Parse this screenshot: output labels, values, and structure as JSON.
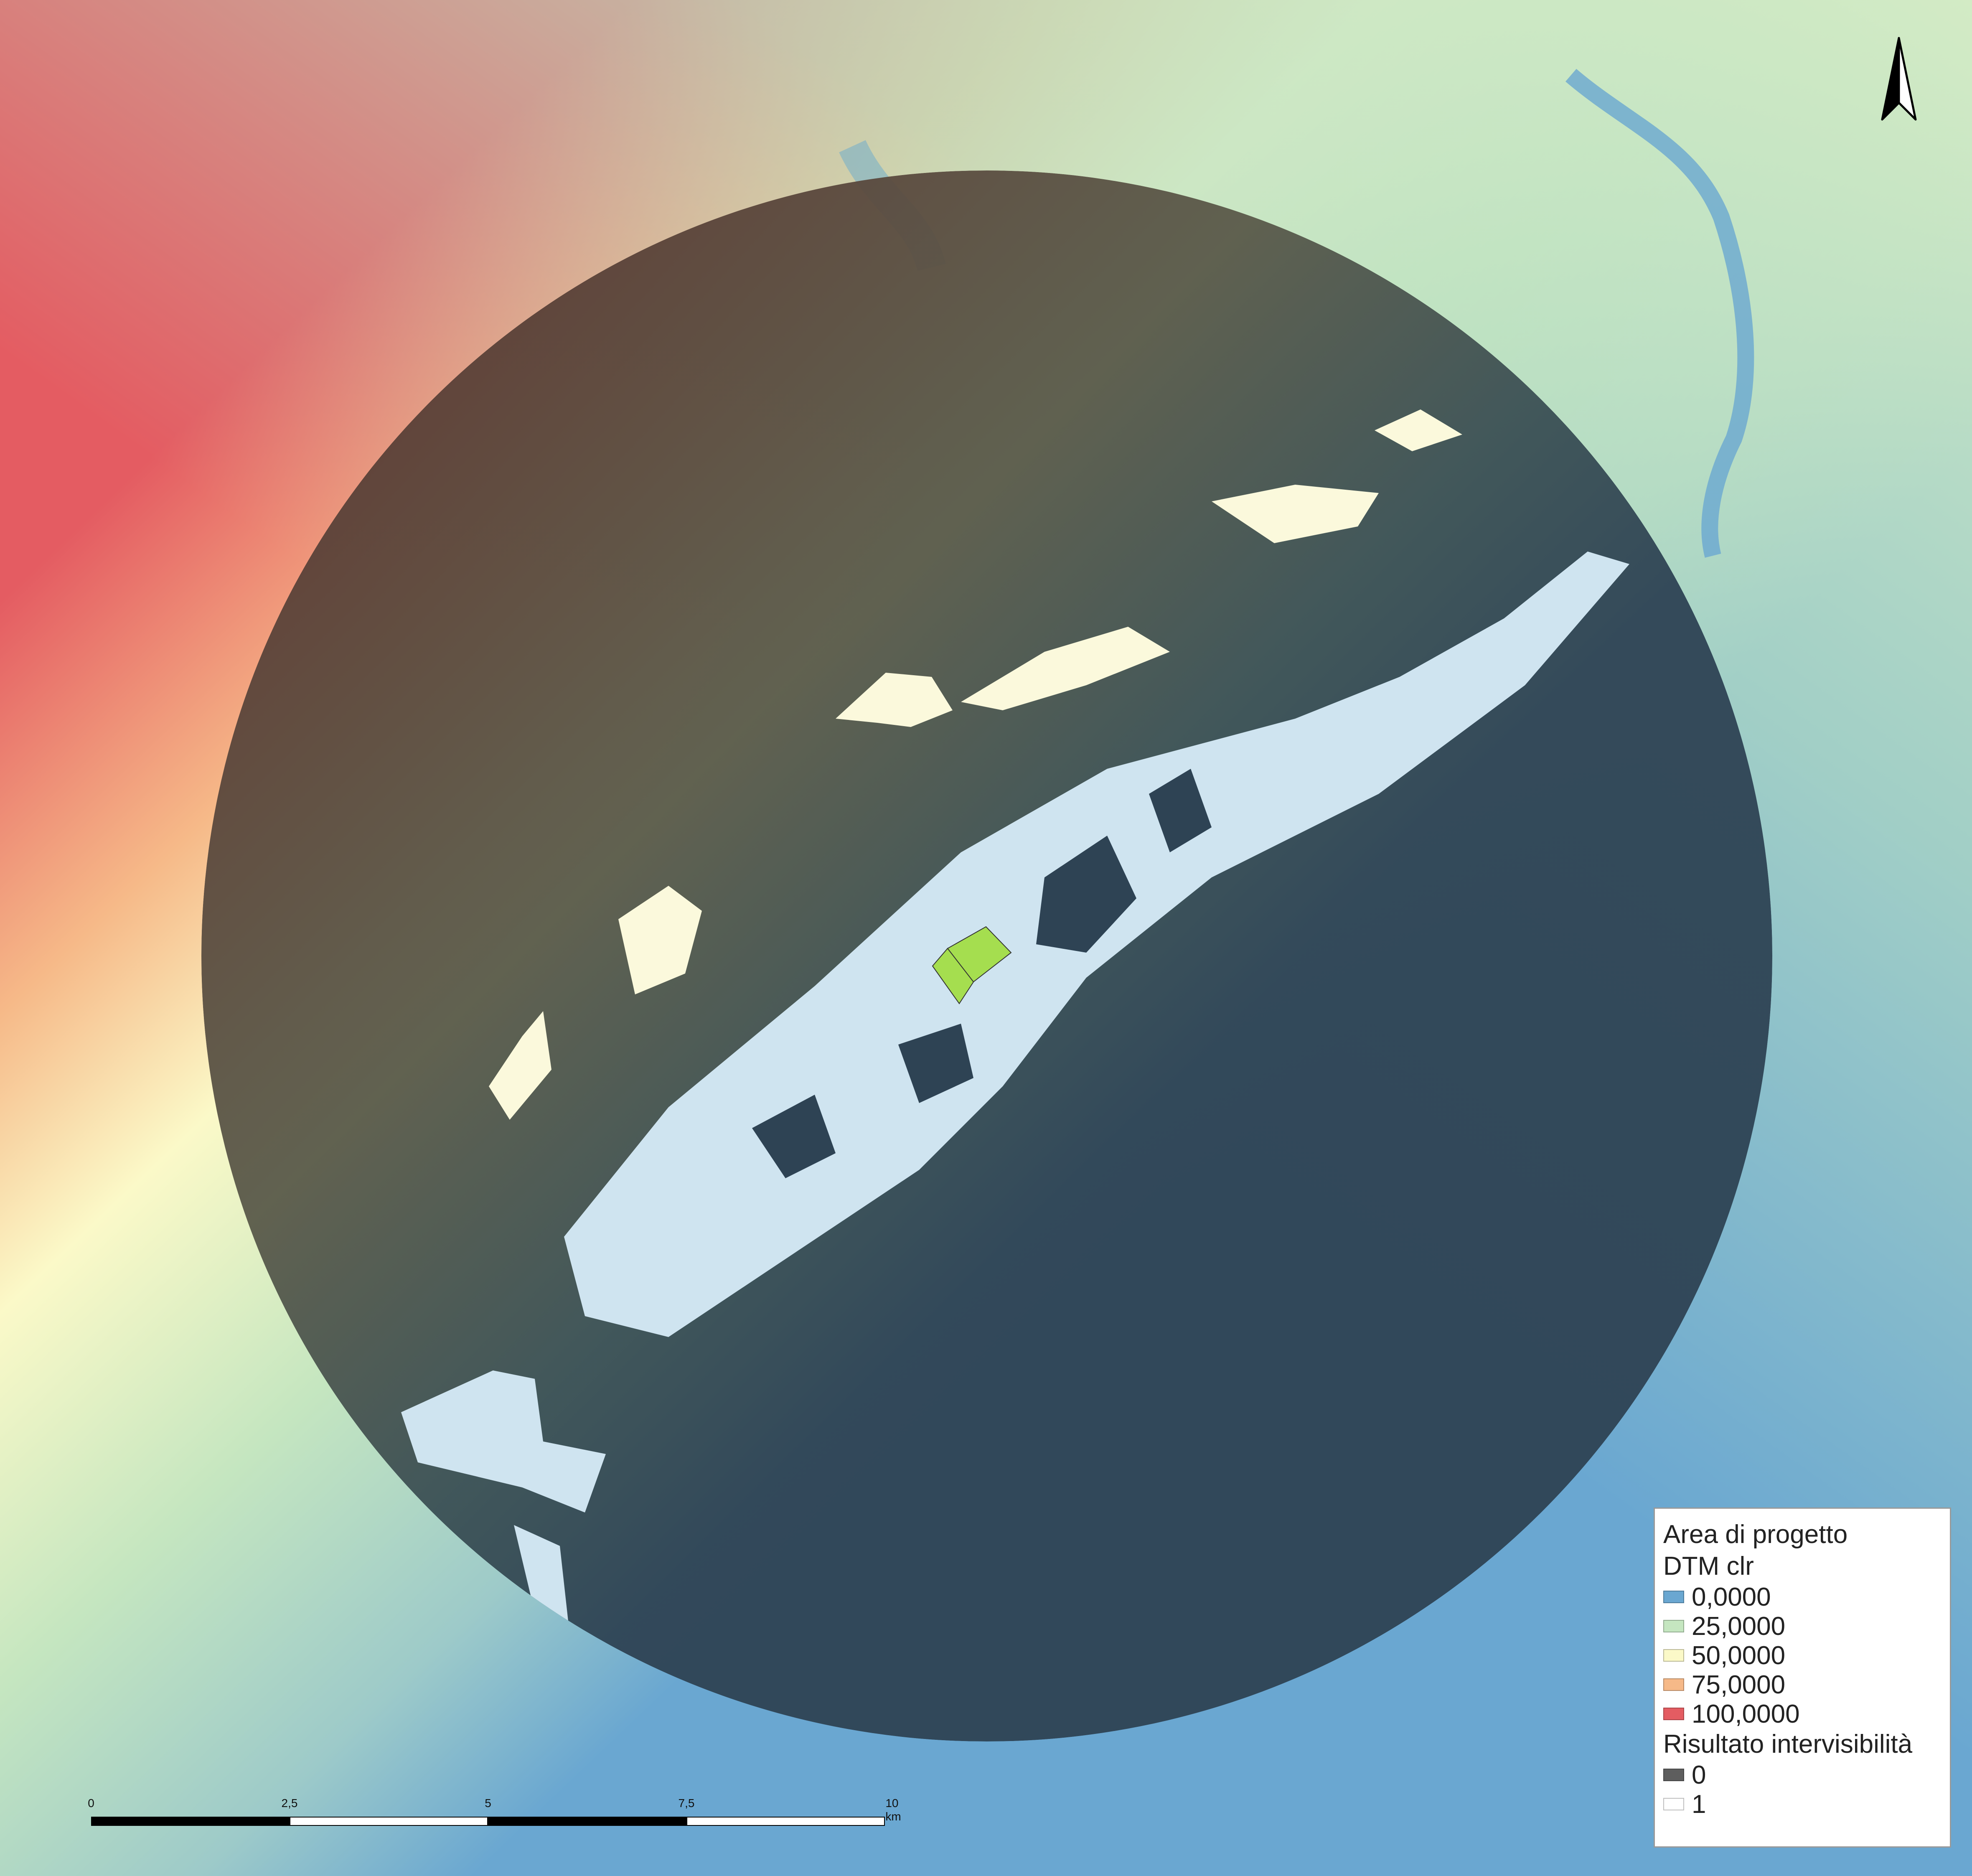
{
  "legend": {
    "project_area": "Area di progetto",
    "dtm_title": "DTM clr",
    "dtm_classes": [
      {
        "label": "0,0000",
        "color": "#6aa7d1"
      },
      {
        "label": "25,0000",
        "color": "#c5e6c0"
      },
      {
        "label": "50,0000",
        "color": "#fbf9c8"
      },
      {
        "label": "75,0000",
        "color": "#f6b988"
      },
      {
        "label": "100,0000",
        "color": "#e45c62"
      }
    ],
    "visibility_title": "Risultato intervisibilità",
    "visibility_classes": [
      {
        "label": "0",
        "color": "#5e5e5e"
      },
      {
        "label": "1",
        "color": "#ffffff"
      }
    ]
  },
  "scale_bar": {
    "labels": [
      "0",
      "2,5",
      "5",
      "7,5",
      "10 km"
    ]
  },
  "north_arrow": {
    "icon": "north-arrow-icon"
  },
  "colors": {
    "viewshed_hidden": "#2e4354",
    "viewshed_visible": "#cfe4f0",
    "project_area": "#a5de4f"
  }
}
